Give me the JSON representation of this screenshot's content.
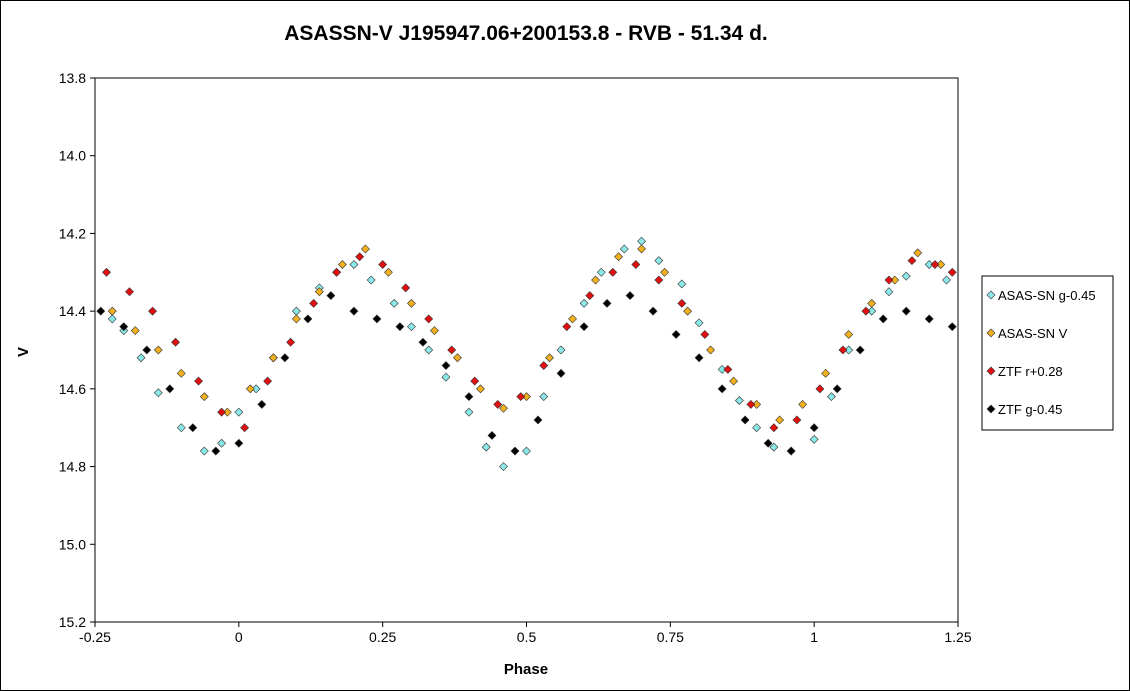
{
  "chart_data": {
    "type": "scatter",
    "title": "ASASSN-V J195947.06+200153.8  - RVB - 51.34 d.",
    "xlabel": "Phase",
    "ylabel": "V",
    "xlim": [
      -0.25,
      1.25
    ],
    "ylim": [
      13.8,
      15.2
    ],
    "y_inverted": true,
    "xticks": [
      "-0.25",
      "0",
      "0.25",
      "0.5",
      "0.75",
      "1",
      "1.25"
    ],
    "xtick_values": [
      -0.25,
      0,
      0.25,
      0.5,
      0.75,
      1,
      1.25
    ],
    "yticks": [
      "13.8",
      "14.0",
      "14.2",
      "14.4",
      "14.6",
      "14.8",
      "15.0",
      "15.2"
    ],
    "ytick_values": [
      13.8,
      14.0,
      14.2,
      14.4,
      14.6,
      14.8,
      15.0,
      15.2
    ],
    "grid": false,
    "legend_position": "right",
    "marker": "diamond",
    "period_days": 51.34,
    "series": [
      {
        "name": "ASAS-SN g-0.45",
        "color": "#8CE8E8",
        "phase": [
          -0.22,
          -0.2,
          -0.17,
          -0.14,
          -0.1,
          -0.06,
          -0.03,
          0.0,
          0.03,
          0.06,
          0.1,
          0.14,
          0.17,
          0.2,
          0.23,
          0.27,
          0.3,
          0.33,
          0.36,
          0.4,
          0.43,
          0.46,
          0.5,
          0.53,
          0.56,
          0.6,
          0.63,
          0.67,
          0.7,
          0.73,
          0.77,
          0.8,
          0.84,
          0.87,
          0.9,
          0.93,
          0.96,
          1.0,
          1.03,
          1.06,
          1.1,
          1.13,
          1.16,
          1.2,
          1.23
        ],
        "values": [
          14.42,
          14.45,
          14.52,
          14.61,
          14.7,
          14.76,
          14.74,
          14.66,
          14.6,
          14.52,
          14.4,
          14.34,
          14.3,
          14.28,
          14.32,
          14.38,
          14.44,
          14.5,
          14.57,
          14.66,
          14.75,
          14.8,
          14.76,
          14.62,
          14.5,
          14.38,
          14.3,
          14.24,
          14.22,
          14.27,
          14.33,
          14.43,
          14.55,
          14.63,
          14.7,
          14.75,
          14.76,
          14.73,
          14.62,
          14.5,
          14.4,
          14.35,
          14.31,
          14.28,
          14.32
        ]
      },
      {
        "name": "ASAS-SN V",
        "color": "#F0B020",
        "phase": [
          -0.22,
          -0.18,
          -0.14,
          -0.1,
          -0.06,
          -0.02,
          0.02,
          0.06,
          0.1,
          0.14,
          0.18,
          0.22,
          0.26,
          0.3,
          0.34,
          0.38,
          0.42,
          0.46,
          0.5,
          0.54,
          0.58,
          0.62,
          0.66,
          0.7,
          0.74,
          0.78,
          0.82,
          0.86,
          0.9,
          0.94,
          0.98,
          1.02,
          1.06,
          1.1,
          1.14,
          1.18,
          1.22
        ],
        "values": [
          14.4,
          14.45,
          14.5,
          14.56,
          14.62,
          14.66,
          14.6,
          14.52,
          14.42,
          14.35,
          14.28,
          14.24,
          14.3,
          14.38,
          14.45,
          14.52,
          14.6,
          14.65,
          14.62,
          14.52,
          14.42,
          14.32,
          14.26,
          14.24,
          14.3,
          14.4,
          14.5,
          14.58,
          14.64,
          14.68,
          14.64,
          14.56,
          14.46,
          14.38,
          14.32,
          14.25,
          14.28
        ]
      },
      {
        "name": "ZTF r+0.28",
        "color": "#E01010",
        "phase": [
          -0.23,
          -0.19,
          -0.15,
          -0.11,
          -0.07,
          -0.03,
          0.01,
          0.05,
          0.09,
          0.13,
          0.17,
          0.21,
          0.25,
          0.29,
          0.33,
          0.37,
          0.41,
          0.45,
          0.49,
          0.53,
          0.57,
          0.61,
          0.65,
          0.69,
          0.73,
          0.77,
          0.81,
          0.85,
          0.89,
          0.93,
          0.97,
          1.01,
          1.05,
          1.09,
          1.13,
          1.17,
          1.21,
          1.24
        ],
        "values": [
          14.3,
          14.35,
          14.4,
          14.48,
          14.58,
          14.66,
          14.7,
          14.58,
          14.48,
          14.38,
          14.3,
          14.26,
          14.28,
          14.34,
          14.42,
          14.5,
          14.58,
          14.64,
          14.62,
          14.54,
          14.44,
          14.36,
          14.3,
          14.28,
          14.32,
          14.38,
          14.46,
          14.55,
          14.64,
          14.7,
          14.68,
          14.6,
          14.5,
          14.4,
          14.32,
          14.27,
          14.28,
          14.3
        ]
      },
      {
        "name": "ZTF g-0.45",
        "color": "#000000",
        "phase": [
          -0.24,
          -0.2,
          -0.16,
          -0.12,
          -0.08,
          -0.04,
          0.0,
          0.04,
          0.08,
          0.12,
          0.16,
          0.2,
          0.24,
          0.28,
          0.32,
          0.36,
          0.4,
          0.44,
          0.48,
          0.52,
          0.56,
          0.6,
          0.64,
          0.68,
          0.72,
          0.76,
          0.8,
          0.84,
          0.88,
          0.92,
          0.96,
          1.0,
          1.04,
          1.08,
          1.12,
          1.16,
          1.2,
          1.24
        ],
        "values": [
          14.4,
          14.44,
          14.5,
          14.6,
          14.7,
          14.76,
          14.74,
          14.64,
          14.52,
          14.42,
          14.36,
          14.4,
          14.42,
          14.44,
          14.48,
          14.54,
          14.62,
          14.72,
          14.76,
          14.68,
          14.56,
          14.44,
          14.38,
          14.36,
          14.4,
          14.46,
          14.52,
          14.6,
          14.68,
          14.74,
          14.76,
          14.7,
          14.6,
          14.5,
          14.42,
          14.4,
          14.42,
          14.44
        ]
      }
    ]
  }
}
